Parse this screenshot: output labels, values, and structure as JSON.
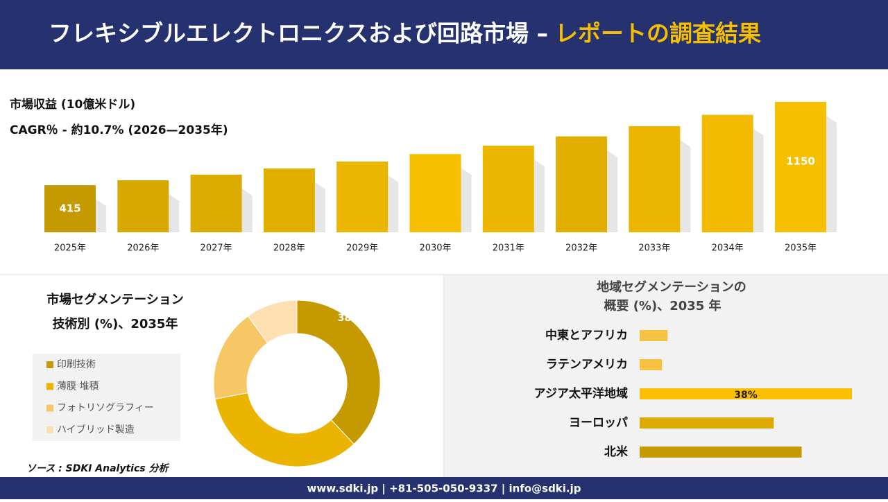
{
  "header": {
    "title": "フレキシブルエレクトロニクスおよび回路市場 –",
    "highlight": "レポートの調査結果"
  },
  "chart_data": [
    {
      "type": "bar",
      "title": "市場収益 (10億米ドル)",
      "subtitle": "CAGR％ - 約10.7% (2026—2035年)",
      "categories": [
        "2025年",
        "2026年",
        "2027年",
        "2028年",
        "2029年",
        "2030年",
        "2031年",
        "2032年",
        "2033年",
        "2034年",
        "2035年"
      ],
      "values": [
        415,
        459,
        509,
        563,
        624,
        690,
        764,
        846,
        936,
        1036,
        1150
      ],
      "value_labels": [
        "415",
        null,
        null,
        null,
        null,
        null,
        null,
        null,
        null,
        null,
        "1150"
      ],
      "colors": [
        "#c49a00",
        "#d6a800",
        "#dcab00",
        "#e2af00",
        "#ebb600",
        "#f6bf00",
        "#ebb600",
        "#e2af00",
        "#ebb600",
        "#f2bb00",
        "#f6bf00"
      ]
    },
    {
      "type": "donut",
      "title": "市場セグメンテーション",
      "subtitle": "技術別 (%)、2035年",
      "categories": [
        "印刷技術",
        "薄膜 堆積",
        "フォトリソグラフィー",
        "ハイブリッド製造"
      ],
      "values": [
        38,
        34,
        18,
        10
      ],
      "value_labels": [
        "38%",
        null,
        null,
        null
      ],
      "colors": [
        "#c49a00",
        "#ebb400",
        "#f7c765",
        "#fde0b2"
      ]
    },
    {
      "type": "hbar",
      "title": "地域セグメンテーションの",
      "subtitle": "概要 (%)、2035 年",
      "categories": [
        "中東とアフリカ",
        "ラテンアメリカ",
        "アジア太平洋地域",
        "ヨーロッパ",
        "北米"
      ],
      "values": [
        5,
        4,
        38,
        24,
        29
      ],
      "value_labels": [
        null,
        null,
        "38%",
        null,
        null
      ],
      "colors": [
        "#f5c242",
        "#f5c242",
        "#fbbf00",
        "#dcaa00",
        "#c49a00"
      ]
    }
  ],
  "source": "ソース : SDKI Analytics 分析",
  "footer": "www.sdki.jp | +81-505-050-9337 | info@sdki.jp"
}
